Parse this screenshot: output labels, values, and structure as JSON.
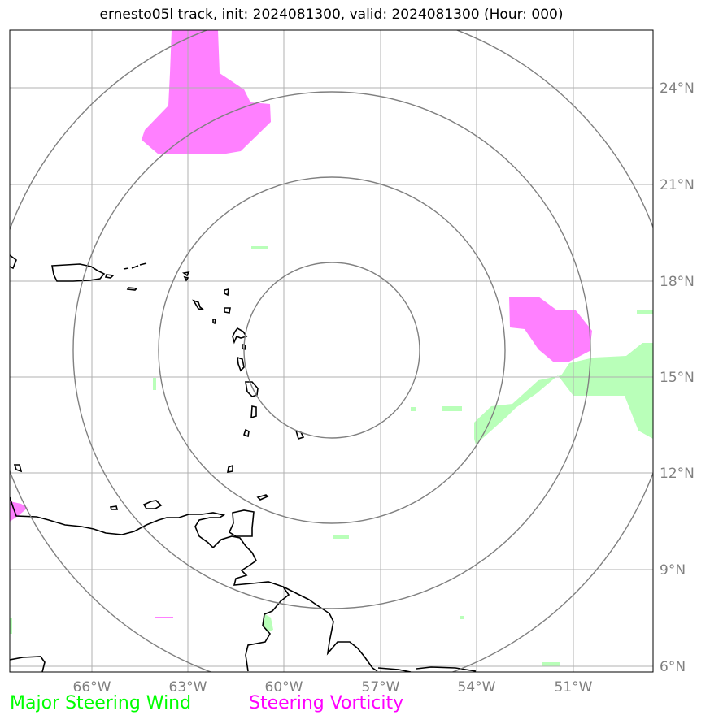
{
  "title": "ernesto05l track, init: 2024081300, valid: 2024081300 (Hour: 000)",
  "map": {
    "lon_labels": [
      "66°W",
      "63°W",
      "60°W",
      "57°W",
      "54°W",
      "51°W"
    ],
    "lat_labels": [
      "24°N",
      "21°N",
      "18°N",
      "15°N",
      "12°N",
      "9°N",
      "6°N"
    ],
    "grid": true,
    "range_rings": 4
  },
  "legend": [
    {
      "label": "Major Steering Wind",
      "color": "#00ff00"
    },
    {
      "label": "Steering Vorticity",
      "color": "#ff00ff"
    }
  ],
  "colors": {
    "wind_fill": "#b9ffb9",
    "vorticity_fill": "#ff80ff",
    "coastline": "#000000",
    "grid": "#b0b0b0",
    "rings": "#808080"
  }
}
